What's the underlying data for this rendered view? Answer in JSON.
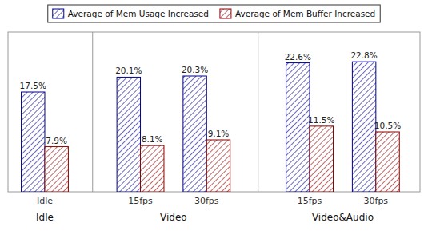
{
  "chart_data": {
    "type": "bar",
    "categories": [
      "Idle",
      "15fps",
      "30fps",
      "15fps",
      "30fps"
    ],
    "series": [
      {
        "name": "Average of Mem Usage Increased",
        "color": "#00008B",
        "values": [
          17.5,
          20.1,
          20.3,
          22.6,
          22.8
        ],
        "value_labels": [
          "17.5%",
          "20.1%",
          "20.3%",
          "22.6%",
          "22.8%"
        ]
      },
      {
        "name": "Average of Mem Buffer Increased",
        "color": "#8B0000",
        "values": [
          7.9,
          8.1,
          9.1,
          11.5,
          10.5
        ],
        "value_labels": [
          "7.9%",
          "8.1%",
          "9.1%",
          "11.5%",
          "10.5%"
        ]
      }
    ],
    "annotations": [
      "Idle",
      "Video",
      "Video&Audio"
    ],
    "ylim": [
      0,
      28
    ],
    "data_labels": true,
    "tick_labels": "x",
    "grid": false,
    "legend": "top"
  }
}
